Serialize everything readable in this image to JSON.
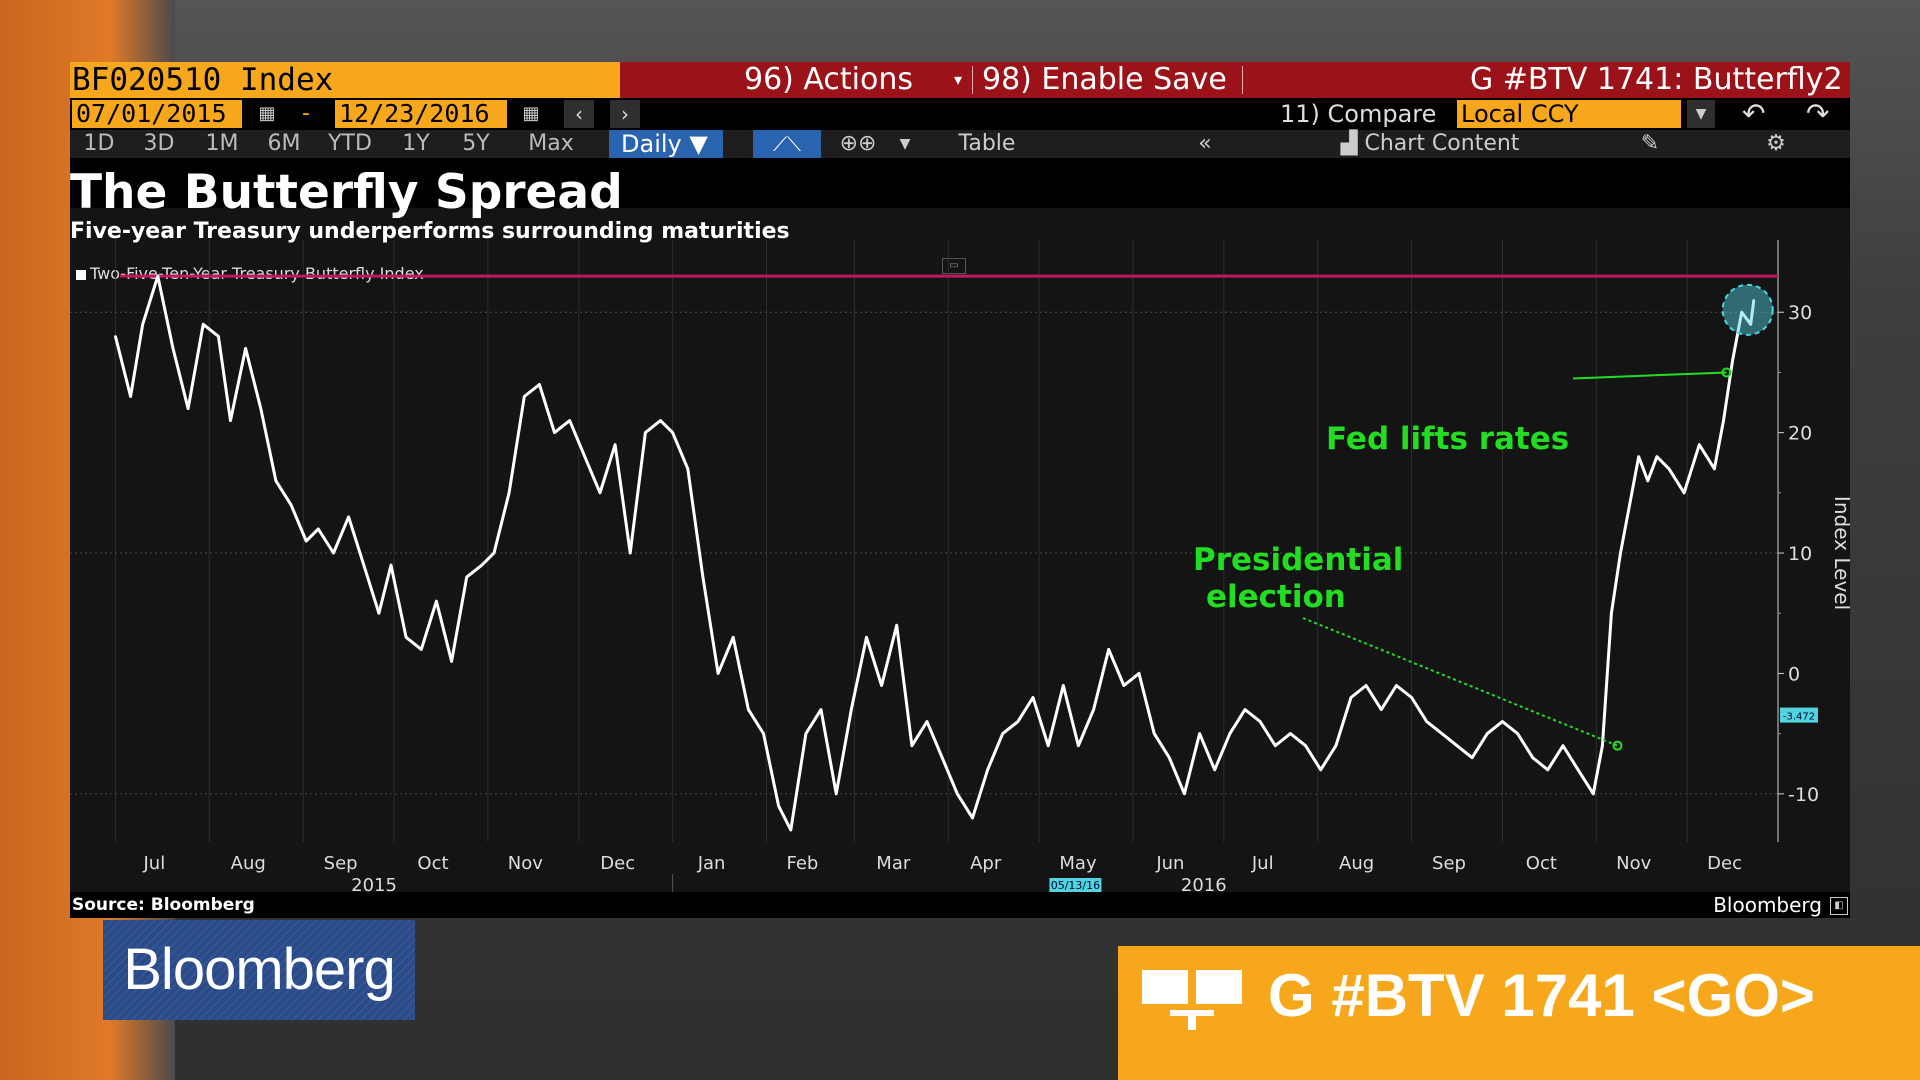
{
  "terminal": {
    "ticker": "BF020510 Index",
    "actions_label": "96) Actions",
    "enable_save_label": "98) Enable Save",
    "page_title": "G #BTV 1741: Butterfly2",
    "start_date": "07/01/2015",
    "end_date": "12/23/2016",
    "compare_label": "11) Compare",
    "currency": "Local CCY",
    "ranges": [
      "1D",
      "3D",
      "1M",
      "6M",
      "YTD",
      "1Y",
      "5Y",
      "Max"
    ],
    "frequency": "Daily",
    "table_label": "Table",
    "chart_content_label": "Chart Content",
    "source": "Source: Bloomberg",
    "brand": "Bloomberg"
  },
  "chart_data": {
    "type": "line",
    "title": "The Butterfly Spread",
    "subtitle": "Five-year Treasury underperforms surrounding maturities",
    "ylabel": "Index Level",
    "ylim": [
      -14,
      36
    ],
    "yticks": [
      -10,
      0,
      10,
      20,
      30
    ],
    "y_tick_labels": [
      "-10",
      "0",
      "10",
      "20",
      "30"
    ],
    "x_tick_labels": [
      "Jul",
      "Aug",
      "Sep",
      "Oct",
      "Nov",
      "Dec",
      "Jan",
      "Feb",
      "Mar",
      "Apr",
      "May",
      "Jun",
      "Jul",
      "Aug",
      "Sep",
      "Oct",
      "Nov",
      "Dec"
    ],
    "year_labels": [
      "2015",
      "2016"
    ],
    "hover_date_label": "05/13/16",
    "last_value_label": "-3.472",
    "reference_line": 33,
    "grid": true,
    "legend_position": "top-left",
    "series": [
      {
        "name": "Two-Five-Ten-Year Treasury Butterfly Index",
        "color": "#ffffff",
        "x": [
          "2015-07-01",
          "2015-07-06",
          "2015-07-10",
          "2015-07-15",
          "2015-07-20",
          "2015-07-25",
          "2015-07-30",
          "2015-08-04",
          "2015-08-08",
          "2015-08-13",
          "2015-08-18",
          "2015-08-23",
          "2015-08-28",
          "2015-09-02",
          "2015-09-06",
          "2015-09-11",
          "2015-09-16",
          "2015-09-21",
          "2015-09-26",
          "2015-09-30",
          "2015-10-05",
          "2015-10-10",
          "2015-10-15",
          "2015-10-20",
          "2015-10-25",
          "2015-10-30",
          "2015-11-03",
          "2015-11-08",
          "2015-11-13",
          "2015-11-18",
          "2015-11-23",
          "2015-11-28",
          "2015-12-03",
          "2015-12-08",
          "2015-12-13",
          "2015-12-18",
          "2015-12-23",
          "2015-12-28",
          "2016-01-01",
          "2016-01-06",
          "2016-01-11",
          "2016-01-16",
          "2016-01-21",
          "2016-01-26",
          "2016-01-31",
          "2016-02-05",
          "2016-02-09",
          "2016-02-14",
          "2016-02-19",
          "2016-02-24",
          "2016-02-29",
          "2016-03-05",
          "2016-03-10",
          "2016-03-15",
          "2016-03-20",
          "2016-03-25",
          "2016-03-30",
          "2016-04-04",
          "2016-04-09",
          "2016-04-14",
          "2016-04-19",
          "2016-04-24",
          "2016-04-29",
          "2016-05-04",
          "2016-05-09",
          "2016-05-14",
          "2016-05-19",
          "2016-05-24",
          "2016-05-29",
          "2016-06-03",
          "2016-06-08",
          "2016-06-13",
          "2016-06-18",
          "2016-06-23",
          "2016-06-28",
          "2016-07-03",
          "2016-07-08",
          "2016-07-13",
          "2016-07-18",
          "2016-07-23",
          "2016-07-28",
          "2016-08-02",
          "2016-08-07",
          "2016-08-12",
          "2016-08-17",
          "2016-08-22",
          "2016-08-27",
          "2016-09-01",
          "2016-09-06",
          "2016-09-11",
          "2016-09-16",
          "2016-09-21",
          "2016-09-26",
          "2016-10-01",
          "2016-10-06",
          "2016-10-11",
          "2016-10-16",
          "2016-10-21",
          "2016-10-26",
          "2016-10-31",
          "2016-11-03",
          "2016-11-06",
          "2016-11-09",
          "2016-11-12",
          "2016-11-15",
          "2016-11-18",
          "2016-11-21",
          "2016-11-25",
          "2016-11-30",
          "2016-12-05",
          "2016-12-10",
          "2016-12-13",
          "2016-12-16",
          "2016-12-19",
          "2016-12-22",
          "2016-12-23"
        ],
        "values": [
          28,
          23,
          29,
          33,
          27,
          22,
          29,
          28,
          21,
          27,
          22,
          16,
          14,
          11,
          12,
          10,
          13,
          9,
          5,
          9,
          3,
          2,
          6,
          1,
          8,
          9,
          10,
          15,
          23,
          24,
          20,
          21,
          18,
          15,
          19,
          10,
          20,
          21,
          20,
          17,
          8,
          0,
          3,
          -3,
          -5,
          -11,
          -13,
          -5,
          -3,
          -10,
          -3,
          3,
          -1,
          4,
          -6,
          -4,
          -7,
          -10,
          -12,
          -8,
          -5,
          -4,
          -2,
          -6,
          -1,
          -6,
          -3,
          2,
          -1,
          0,
          -5,
          -7,
          -10,
          -5,
          -8,
          -5,
          -3,
          -4,
          -6,
          -5,
          -6,
          -8,
          -6,
          -2,
          -1,
          -3,
          -1,
          -2,
          -4,
          -5,
          -6,
          -7,
          -5,
          -4,
          -5,
          -7,
          -8,
          -6,
          -8,
          -10,
          -6,
          5,
          10,
          14,
          18,
          16,
          18,
          17,
          15,
          19,
          17,
          21,
          26,
          30,
          29,
          31
        ]
      }
    ],
    "annotations": [
      {
        "text": "Fed lifts rates",
        "date": "2016-12-14",
        "value": 25
      },
      {
        "text_lines": [
          "Presidential",
          "election"
        ],
        "date": "2016-11-08",
        "value": -6
      }
    ],
    "colors": {
      "line": "#ffffff",
      "reference_line": "#c2185b",
      "annotation": "#22dd22",
      "highlight": "#4fd4e0"
    }
  },
  "overlay": {
    "logo_text": "Bloomberg",
    "go_command": "G #BTV 1741 <GO>"
  }
}
